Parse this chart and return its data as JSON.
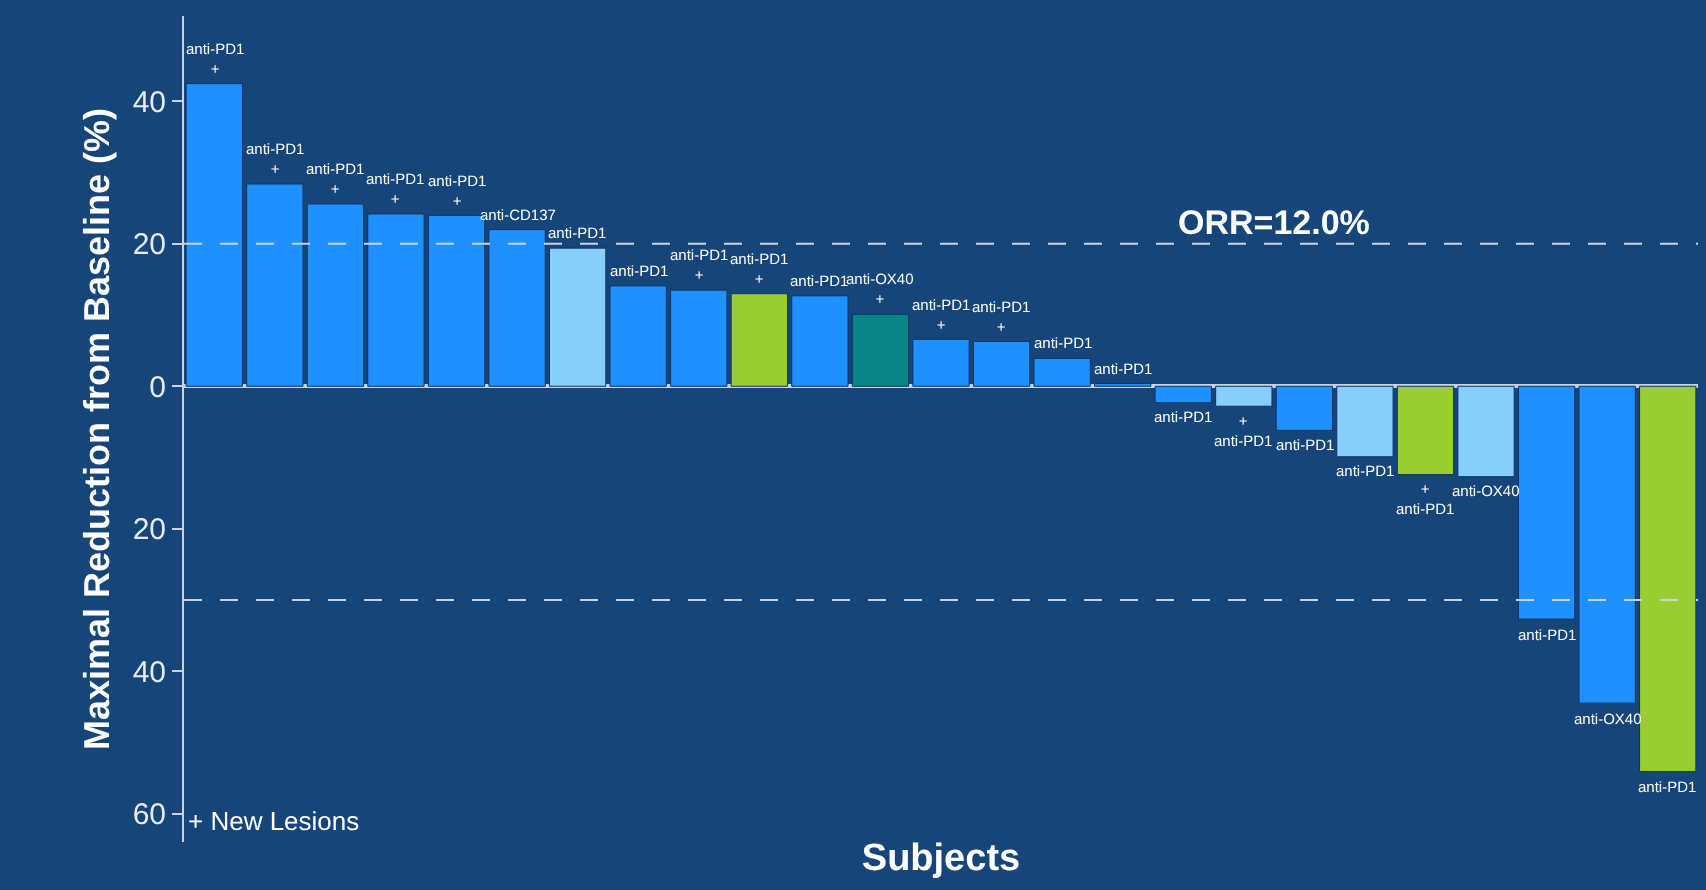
{
  "chart_data": {
    "type": "bar",
    "xlabel": "Subjects",
    "ylabel": "Maximal Reduction from Baseline (%)",
    "categories": [
      null,
      null,
      null,
      null,
      null,
      null,
      null,
      null,
      null,
      null,
      null,
      null,
      null,
      null,
      null,
      null,
      null,
      null,
      null,
      null,
      null,
      null,
      null,
      null,
      null
    ],
    "values": [
      42.5,
      28.4,
      25.6,
      24.2,
      24.0,
      22.0,
      19.4,
      14.1,
      13.5,
      13.0,
      12.7,
      10.1,
      6.6,
      6.3,
      3.9,
      0.4,
      -2.3,
      -2.8,
      -6.2,
      -9.9,
      -12.4,
      -12.7,
      -32.7,
      -44.5,
      -54.1
    ],
    "colors": [
      "#1e90ff",
      "#1e90ff",
      "#1e90ff",
      "#1e90ff",
      "#1e90ff",
      "#1e90ff",
      "#87cefa",
      "#1e90ff",
      "#1e90ff",
      "#9acd32",
      "#1e90ff",
      "#0a8585",
      "#1e90ff",
      "#1e90ff",
      "#1e90ff",
      "#1e90ff",
      "#1e90ff",
      "#87cefa",
      "#1e90ff",
      "#87cefa",
      "#9acd32",
      "#87cefa",
      "#1e90ff",
      "#1e90ff",
      "#9acd32"
    ],
    "value_labels": [
      "anti-PD1\n+",
      "anti-PD1\n+",
      "anti-PD1\n+",
      "anti-PD1\n+",
      "anti-PD1\n+",
      "anti-CD137",
      "anti-PD1",
      "anti-PD1",
      "anti-PD1\n+",
      "anti-PD1\n+",
      "anti-PD1",
      "anti-OX40\n+",
      "anti-PD1\n+",
      "anti-PD1\n+",
      "anti-PD1",
      "anti-PD1",
      "anti-PD1",
      "+\nanti-PD1",
      "anti-PD1",
      "anti-PD1",
      "+\nanti-PD1",
      "anti-OX40",
      "anti-PD1",
      "anti-OX40",
      "anti-PD1"
    ],
    "ylim": [
      -64,
      52
    ],
    "yticks": [
      {
        "value": -60,
        "label": "60"
      },
      {
        "value": -40,
        "label": "40"
      },
      {
        "value": -20,
        "label": "20"
      },
      0,
      20,
      40
    ],
    "ref_lines": [
      {
        "axis": "y",
        "value": 20,
        "color": "#c8d4e4",
        "line_style": "dashed"
      },
      {
        "axis": "y",
        "value": -30,
        "color": "#c8d4e4",
        "line_style": "dashed"
      }
    ],
    "annotations": [
      "ORR=12.0%",
      "+ New Lesions"
    ],
    "tick_labels": "y",
    "legend": false,
    "grid": false
  }
}
